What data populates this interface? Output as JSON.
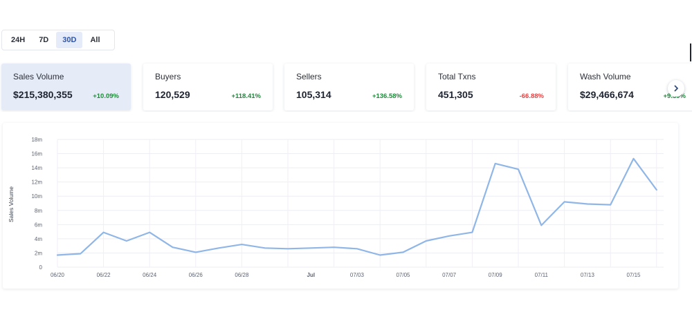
{
  "timeframes": [
    {
      "label": "24H",
      "active": false
    },
    {
      "label": "7D",
      "active": false
    },
    {
      "label": "30D",
      "active": true
    },
    {
      "label": "All",
      "active": false
    }
  ],
  "cards": [
    {
      "label": "Sales Volume",
      "value": "$215,380,355",
      "change": "+10.09%",
      "positive": true,
      "active": true
    },
    {
      "label": "Buyers",
      "value": "120,529",
      "change": "+118.41%",
      "positive": true,
      "active": false
    },
    {
      "label": "Sellers",
      "value": "105,314",
      "change": "+136.58%",
      "positive": true,
      "active": false
    },
    {
      "label": "Total Txns",
      "value": "451,305",
      "change": "-66.88%",
      "positive": false,
      "active": false
    },
    {
      "label": "Wash Volume",
      "value": "$29,466,674",
      "change": "+9.50%",
      "positive": true,
      "active": false
    }
  ],
  "icons": {
    "next": "chevron-right-icon"
  },
  "colors": {
    "line": "#8fb6e6",
    "positive": "#1e8a3a",
    "negative": "#e14545",
    "active_bg": "#e6ebf8"
  },
  "chart_data": {
    "type": "line",
    "ylabel": "Sales Volume",
    "ylim": [
      0,
      18000000
    ],
    "y_ticks": [
      "0",
      "2m",
      "4m",
      "6m",
      "8m",
      "10m",
      "12m",
      "14m",
      "16m",
      "18m"
    ],
    "x_tick_labels": [
      "06/20",
      "06/22",
      "06/24",
      "06/26",
      "06/28",
      "Jul",
      "07/03",
      "07/05",
      "07/07",
      "07/09",
      "07/11",
      "07/13",
      "07/15"
    ],
    "x": [
      "06/20",
      "06/21",
      "06/22",
      "06/23",
      "06/24",
      "06/25",
      "06/26",
      "06/27",
      "06/28",
      "06/29",
      "06/30",
      "07/01",
      "07/02",
      "07/03",
      "07/04",
      "07/05",
      "07/06",
      "07/07",
      "07/08",
      "07/09",
      "07/10",
      "07/11",
      "07/12",
      "07/13",
      "07/14",
      "07/15",
      "07/16"
    ],
    "series": [
      {
        "values": [
          1700000,
          1900000,
          4900000,
          3700000,
          4900000,
          2800000,
          2100000,
          2700000,
          3200000,
          2700000,
          2600000,
          2700000,
          2800000,
          2600000,
          1700000,
          2100000,
          3700000,
          4400000,
          4900000,
          14600000,
          13800000,
          5900000,
          9200000,
          8900000,
          8800000,
          15300000,
          10900000
        ]
      }
    ],
    "grid": true,
    "legend": "none"
  }
}
